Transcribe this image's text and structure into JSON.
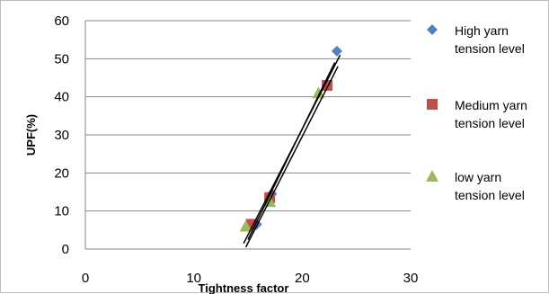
{
  "chart_data": {
    "type": "scatter",
    "xlabel": "Tightness factor",
    "ylabel": "UPF(%)",
    "xlim": [
      0,
      30
    ],
    "ylim": [
      0,
      60
    ],
    "x_ticks": [
      "0",
      "10",
      "20",
      "30"
    ],
    "y_ticks": [
      "0",
      "10",
      "20",
      "30",
      "40",
      "50",
      "60"
    ],
    "grid": "horizontal",
    "legend_position": "right",
    "series": [
      {
        "name": "High yarn tension level",
        "marker": "diamond",
        "color": "#4F81BD",
        "points": [
          [
            15.8,
            6.5
          ],
          [
            17.2,
            14.5
          ],
          [
            23.2,
            52
          ]
        ]
      },
      {
        "name": "Medium yarn tension level",
        "marker": "square",
        "color": "#C0504D",
        "points": [
          [
            15.3,
            6.5
          ],
          [
            17.0,
            13.5
          ],
          [
            22.3,
            43
          ]
        ]
      },
      {
        "name": "low yarn tension level",
        "marker": "triangle",
        "color": "#9BBB59",
        "points": [
          [
            14.8,
            6.0
          ],
          [
            17.0,
            12.5
          ],
          [
            21.5,
            41
          ]
        ]
      }
    ],
    "trendlines": [
      {
        "x": [
          14.6,
          23.5
        ],
        "y": [
          1.5,
          51
        ]
      },
      {
        "x": [
          14.8,
          23.3
        ],
        "y": [
          0.5,
          48
        ]
      },
      {
        "x": [
          15.0,
          23.0
        ],
        "y": [
          2.5,
          49
        ]
      }
    ]
  }
}
